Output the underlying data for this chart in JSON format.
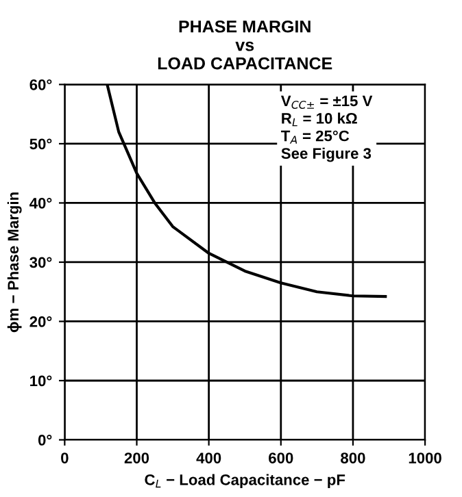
{
  "chart_data": {
    "type": "line",
    "title": "PHASE MARGIN\nvs\nLOAD CAPACITANCE",
    "xlabel": "C$_{L}$ − Load Capacitance − pF",
    "ylabel": "ϕm − Phase Margin",
    "x": [
      118,
      150,
      200,
      250,
      300,
      400,
      500,
      600,
      700,
      800,
      890
    ],
    "series": [
      {
        "color": "#000000",
        "values": [
          60,
          52,
          45,
          40,
          36,
          31.5,
          28.5,
          26.5,
          25,
          24.3,
          24.2
        ]
      }
    ],
    "xlim": [
      0,
      1000
    ],
    "xticks": [
      0,
      200,
      400,
      600,
      800,
      1000
    ],
    "ylim": [
      0,
      60
    ],
    "yticks": [
      {
        "value": 0,
        "label": "0°"
      },
      {
        "value": 10,
        "label": "10°"
      },
      {
        "value": 20,
        "label": "20°"
      },
      {
        "value": 30,
        "label": "30°"
      },
      {
        "value": 40,
        "label": "40°"
      },
      {
        "value": 50,
        "label": "50°"
      },
      {
        "value": 60,
        "label": "60°"
      }
    ],
    "grid": true,
    "annotations": [
      "V$_{CC±}$ = ±15 V\nR$_{L}$ = 10 kΩ\nT$_{A}$ = 25°C\nSee Figure 3"
    ]
  }
}
